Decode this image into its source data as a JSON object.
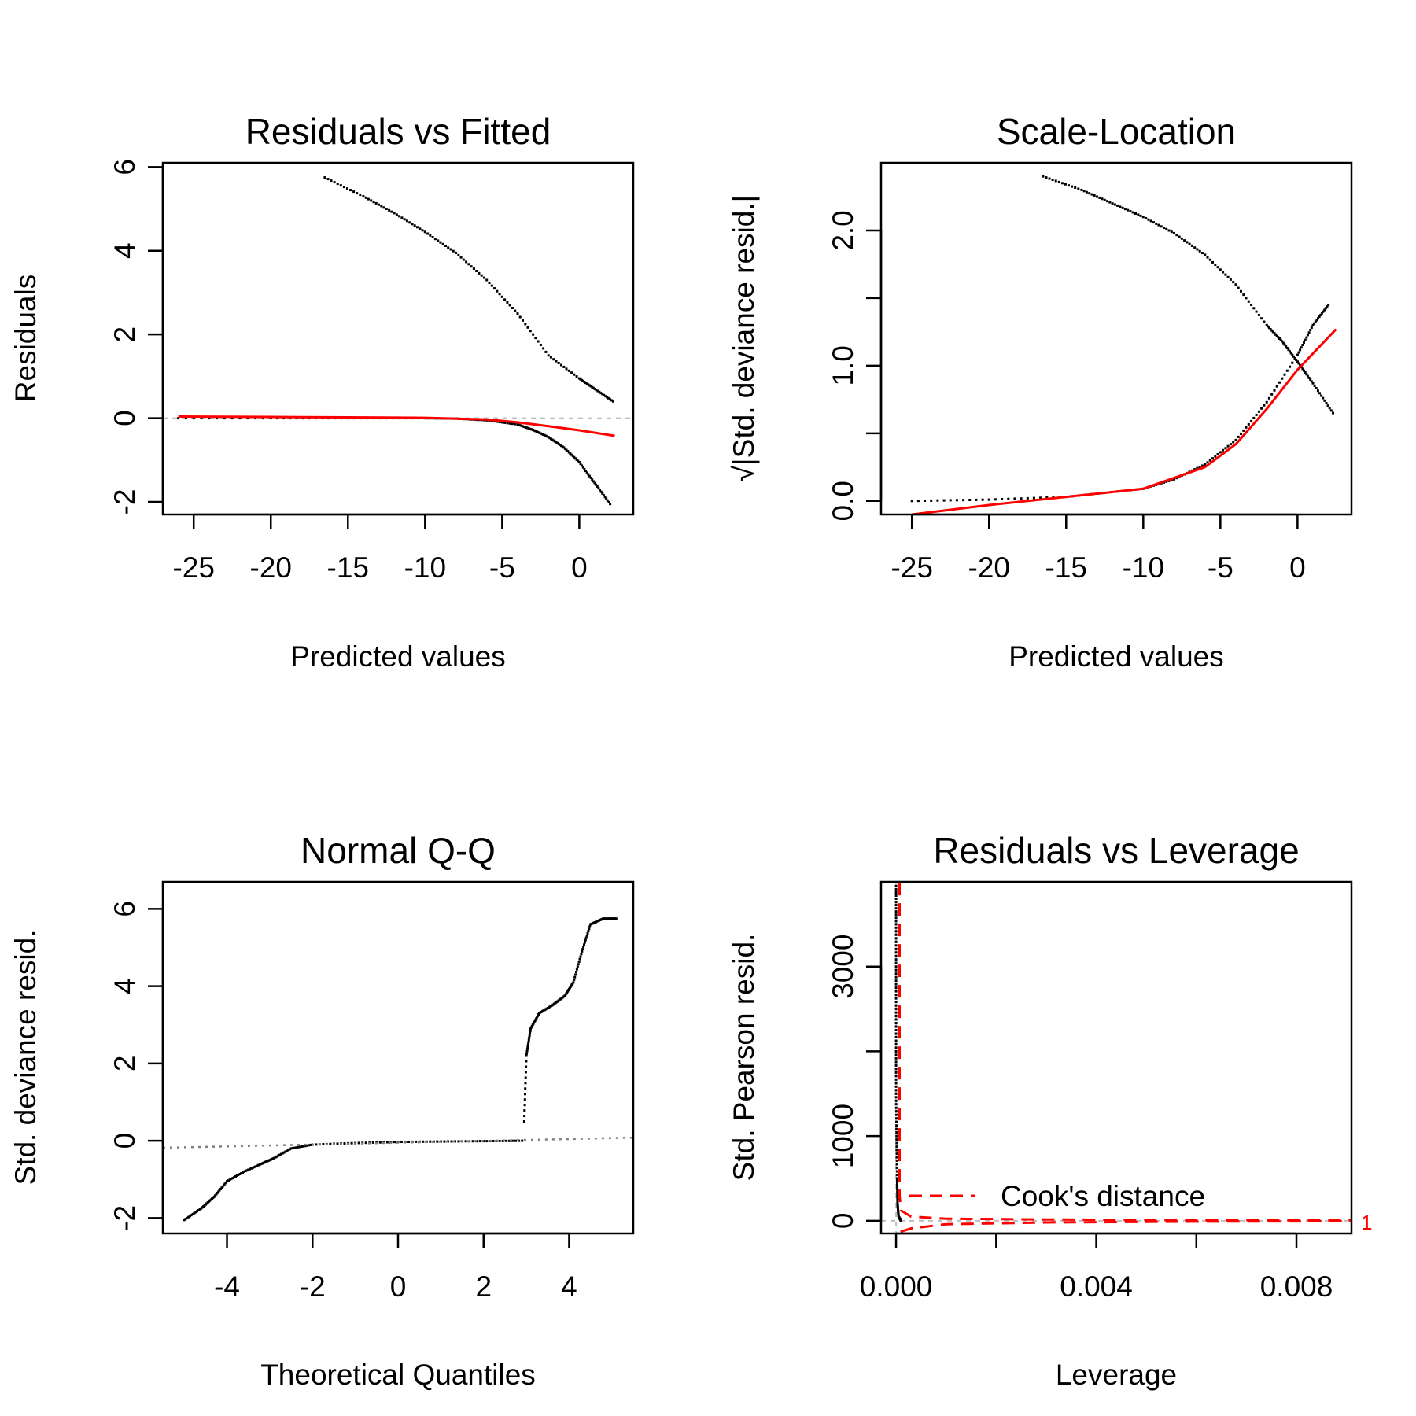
{
  "colors": {
    "points": "#000000",
    "smooth": "#ff0000",
    "reference": "#bebebe",
    "qqline": "#808080",
    "cook": "#ff0000"
  },
  "chart_data": [
    {
      "type": "scatter",
      "title": "Residuals vs Fitted",
      "xlabel": "Predicted values",
      "ylabel": "Residuals",
      "xlim": [
        -27,
        3.5
      ],
      "ylim": [
        -2.3,
        6.1
      ],
      "xticks": [
        -25,
        -20,
        -15,
        -10,
        -5,
        0
      ],
      "xtick_labels": [
        "-25",
        "-20",
        "-15",
        "-10",
        "-5",
        "0"
      ],
      "yticks": [
        -2,
        0,
        2,
        4,
        6
      ],
      "ytick_labels": [
        "-2",
        "0",
        "2",
        "4",
        "6"
      ],
      "reference_y": 0,
      "series": [
        {
          "kind": "points",
          "x": [
            -16.5,
            -14,
            -12,
            -10,
            -8,
            -6,
            -4,
            -2,
            0,
            1,
            2.2
          ],
          "y": [
            5.75,
            5.3,
            4.9,
            4.45,
            3.95,
            3.3,
            2.5,
            1.5,
            0.95,
            0.7,
            0.4
          ]
        },
        {
          "kind": "points",
          "x": [
            -26,
            -20,
            -15,
            -10,
            -8,
            -6,
            -4,
            -3,
            -2,
            -1,
            0,
            1,
            2
          ],
          "y": [
            0,
            0,
            0,
            0,
            -0.01,
            -0.05,
            -0.15,
            -0.28,
            -0.45,
            -0.7,
            -1.05,
            -1.55,
            -2.05
          ]
        },
        {
          "kind": "smooth",
          "x": [
            -26,
            -20,
            -15,
            -10,
            -6,
            -4,
            -2,
            0,
            2.3
          ],
          "y": [
            0.04,
            0.03,
            0.02,
            0.01,
            -0.03,
            -0.1,
            -0.19,
            -0.29,
            -0.42
          ]
        }
      ]
    },
    {
      "type": "scatter",
      "title": "Scale-Location",
      "xlabel": "Predicted values",
      "ylabel": "√|Std. deviance resid.|",
      "xlim": [
        -27,
        3.5
      ],
      "ylim": [
        -0.1,
        2.5
      ],
      "xticks": [
        -25,
        -20,
        -15,
        -10,
        -5,
        0
      ],
      "xtick_labels": [
        "-25",
        "-20",
        "-15",
        "-10",
        "-5",
        "0"
      ],
      "yticks": [
        0.0,
        0.5,
        1.0,
        1.5,
        2.0
      ],
      "ytick_labels": [
        "0.0",
        "",
        "1.0",
        "",
        "2.0"
      ],
      "series": [
        {
          "kind": "points",
          "x": [
            -16.5,
            -14,
            -12,
            -10,
            -8,
            -6,
            -4,
            -2,
            -1,
            0,
            1,
            2.3
          ],
          "y": [
            2.4,
            2.3,
            2.2,
            2.1,
            1.98,
            1.82,
            1.6,
            1.3,
            1.18,
            1.03,
            0.87,
            0.65
          ]
        },
        {
          "kind": "points",
          "x": [
            -25,
            -20,
            -15,
            -10,
            -8,
            -6,
            -4,
            -2,
            0,
            1,
            2
          ],
          "y": [
            0.0,
            0.01,
            0.03,
            0.09,
            0.16,
            0.27,
            0.45,
            0.73,
            1.08,
            1.3,
            1.45
          ]
        },
        {
          "kind": "smooth",
          "x": [
            -25,
            -20,
            -15,
            -10,
            -6,
            -4,
            -2,
            0,
            2.5
          ],
          "y": [
            -0.1,
            -0.03,
            0.03,
            0.09,
            0.25,
            0.42,
            0.68,
            0.97,
            1.27
          ]
        }
      ]
    },
    {
      "type": "scatter",
      "title": "Normal Q-Q",
      "xlabel": "Theoretical Quantiles",
      "ylabel": "Std. deviance resid.",
      "xlim": [
        -5.5,
        5.5
      ],
      "ylim": [
        -2.4,
        6.7
      ],
      "xticks": [
        -4,
        -2,
        0,
        2,
        4
      ],
      "xtick_labels": [
        "-4",
        "-2",
        "0",
        "2",
        "4"
      ],
      "yticks": [
        -2,
        0,
        2,
        4,
        6
      ],
      "ytick_labels": [
        "-2",
        "0",
        "2",
        "4",
        "6"
      ],
      "series": [
        {
          "kind": "points",
          "x": [
            -5,
            -4.6,
            -4.3,
            -4.0,
            -3.6,
            -3.2,
            -2.9,
            -2.5,
            -2.0,
            -1.0,
            0,
            1,
            2,
            2.9
          ],
          "y": [
            -2.05,
            -1.75,
            -1.45,
            -1.05,
            -0.8,
            -0.6,
            -0.45,
            -0.2,
            -0.1,
            -0.06,
            -0.03,
            -0.02,
            -0.01,
            0.0
          ]
        },
        {
          "kind": "points",
          "x": [
            2.95,
            3.0,
            3.1,
            3.3,
            3.6,
            3.9,
            4.1,
            4.3,
            4.5,
            4.8,
            5.1
          ],
          "y": [
            0.5,
            2.2,
            2.9,
            3.3,
            3.5,
            3.75,
            4.1,
            4.9,
            5.6,
            5.75,
            5.75
          ]
        },
        {
          "kind": "qqline",
          "x": [
            -5.5,
            5.5
          ],
          "y": [
            -0.18,
            0.08
          ]
        }
      ]
    },
    {
      "type": "scatter",
      "title": "Residuals vs Leverage",
      "xlabel": "Leverage",
      "ylabel": "Std. Pearson resid.",
      "xlim": [
        -0.0003,
        0.0091
      ],
      "ylim": [
        -150,
        4000
      ],
      "xticks": [
        0.0,
        0.002,
        0.004,
        0.006,
        0.008
      ],
      "xtick_labels": [
        "0.000",
        "",
        "0.004",
        "",
        "0.008"
      ],
      "yticks": [
        0,
        1000,
        2000,
        3000
      ],
      "ytick_labels": [
        "0",
        "1000",
        "",
        "3000"
      ],
      "reference_x": 0,
      "reference_y": 0,
      "legend": {
        "label": "Cook's distance",
        "position": "bottom-center"
      },
      "contour_label": "1",
      "series": [
        {
          "kind": "points",
          "x": [
            0,
            0,
            0,
            0,
            0,
            0,
            1e-05,
            2e-05,
            3e-05,
            5e-05,
            0.0001
          ],
          "y": [
            3950,
            3500,
            3000,
            2500,
            2000,
            1500,
            1000,
            500,
            200,
            50,
            0
          ]
        },
        {
          "kind": "cook",
          "x": [
            7e-05,
            7e-05,
            0.0001,
            0.0003,
            0.001,
            0.003,
            0.006,
            0.0091
          ],
          "y": [
            3990,
            300,
            120,
            50,
            25,
            15,
            8,
            5
          ]
        },
        {
          "kind": "cook",
          "x": [
            9e-05,
            0.0003,
            0.001,
            0.003,
            0.006,
            0.0091
          ],
          "y": [
            -130,
            -90,
            -40,
            -20,
            -10,
            -5
          ]
        }
      ]
    }
  ]
}
